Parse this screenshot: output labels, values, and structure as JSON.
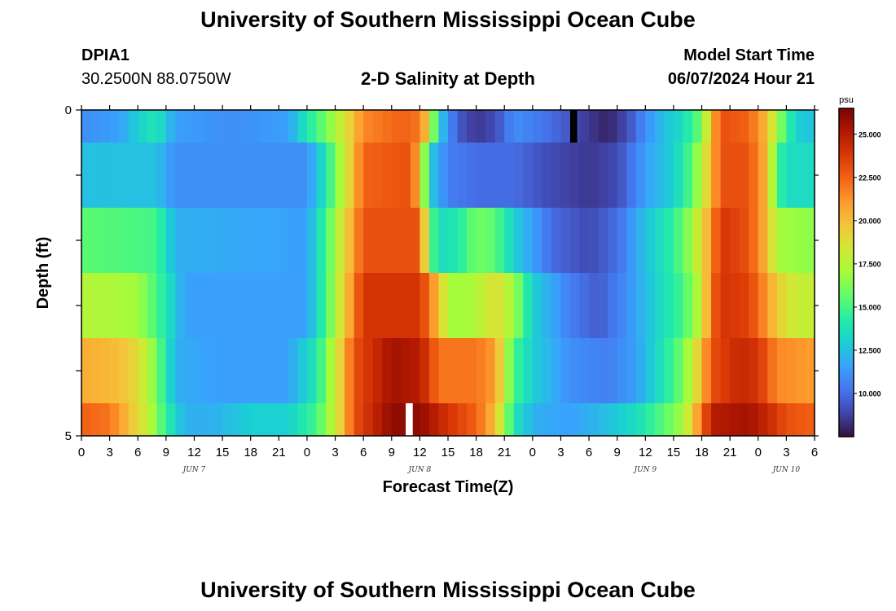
{
  "header": {
    "title": "University of Southern Mississippi Ocean Cube",
    "station_id": "DPIA1",
    "coords": "30.2500N  88.0750W",
    "plot_title": "2-D Salinity at Depth",
    "model_start_label": "Model Start Time",
    "model_start_value": "06/07/2024 Hour 21"
  },
  "footer": {
    "title": "University of Southern Mississippi Ocean Cube"
  },
  "chart_data": {
    "type": "heatmap",
    "xlabel": "Forecast Time(Z)",
    "ylabel": "Depth (ft)",
    "x_tick_labels": [
      "0",
      "3",
      "6",
      "9",
      "12",
      "15",
      "18",
      "21",
      "0",
      "3",
      "6",
      "9",
      "12",
      "15",
      "18",
      "21",
      "0",
      "3",
      "6",
      "9",
      "12",
      "15",
      "18",
      "21",
      "0",
      "3",
      "6"
    ],
    "date_labels": [
      {
        "text": "JUN 7",
        "hour": 12
      },
      {
        "text": "JUN 8",
        "hour": 36
      },
      {
        "text": "JUN 9",
        "hour": 60
      },
      {
        "text": "JUN 10",
        "hour": 75
      }
    ],
    "y_tick_labels": [
      "0",
      "5"
    ],
    "ylim": [
      0,
      5
    ],
    "x_range_hours": [
      0,
      78
    ],
    "colorbar": {
      "unit": "psu",
      "min": 7.5,
      "max": 26.5,
      "tick_values": [
        10.0,
        12.5,
        15.0,
        17.5,
        20.0,
        22.5,
        25.0
      ],
      "tick_labels": [
        "10.000",
        "12.500",
        "15.000",
        "17.500",
        "20.000",
        "22.500",
        "25.000"
      ],
      "colors": [
        "#30123b",
        "#4145ab",
        "#4675ed",
        "#39a2fc",
        "#1bcfd4",
        "#24eca6",
        "#61fc6c",
        "#a4fc3b",
        "#d1e834",
        "#f3c63a",
        "#fe9b2d",
        "#f36315",
        "#d93806",
        "#b11901",
        "#7a0402"
      ]
    },
    "depth_bands": [
      0,
      0.5,
      1.5,
      2.5,
      3.5,
      4.5,
      5
    ],
    "salinity_keyframes": [
      {
        "name": "0-0.5 ft",
        "points": [
          [
            0,
            11
          ],
          [
            4,
            11.5
          ],
          [
            6,
            13
          ],
          [
            8,
            14
          ],
          [
            10,
            11.5
          ],
          [
            16,
            11
          ],
          [
            22,
            11.5
          ],
          [
            24,
            14
          ],
          [
            26,
            16
          ],
          [
            28,
            18.5
          ],
          [
            30,
            21.5
          ],
          [
            34,
            22.5
          ],
          [
            36,
            22
          ],
          [
            37,
            19
          ],
          [
            38,
            13
          ],
          [
            40,
            9.5
          ],
          [
            42,
            8.5
          ],
          [
            44,
            9
          ],
          [
            46,
            11
          ],
          [
            50,
            10
          ],
          [
            54,
            8.5
          ],
          [
            56,
            8
          ],
          [
            58,
            9
          ],
          [
            60,
            11
          ],
          [
            62,
            12.5
          ],
          [
            64,
            13.5
          ],
          [
            66,
            16
          ],
          [
            67,
            20
          ],
          [
            68,
            23
          ],
          [
            71,
            22.5
          ],
          [
            73,
            20
          ],
          [
            74,
            17
          ],
          [
            76,
            13
          ],
          [
            78,
            12.5
          ]
        ]
      },
      {
        "name": "0.5-1.5 ft",
        "points": [
          [
            0,
            12.5
          ],
          [
            8,
            12.5
          ],
          [
            10,
            11
          ],
          [
            24,
            11
          ],
          [
            26,
            14
          ],
          [
            28,
            18
          ],
          [
            30,
            22.5
          ],
          [
            35,
            23
          ],
          [
            36,
            20
          ],
          [
            37,
            13
          ],
          [
            39,
            10.5
          ],
          [
            42,
            10
          ],
          [
            46,
            10
          ],
          [
            50,
            9
          ],
          [
            54,
            8.5
          ],
          [
            57,
            9
          ],
          [
            60,
            11.5
          ],
          [
            63,
            13
          ],
          [
            65,
            15.5
          ],
          [
            67,
            20
          ],
          [
            68,
            23
          ],
          [
            71,
            23
          ],
          [
            73,
            20
          ],
          [
            74,
            15
          ],
          [
            75,
            13.5
          ],
          [
            78,
            13.5
          ]
        ]
      },
      {
        "name": "1.5-2.5 ft",
        "points": [
          [
            0,
            15.5
          ],
          [
            8,
            15
          ],
          [
            10,
            12
          ],
          [
            24,
            11.5
          ],
          [
            26,
            15
          ],
          [
            28,
            19
          ],
          [
            30,
            23
          ],
          [
            36,
            23
          ],
          [
            37,
            16
          ],
          [
            38,
            13.5
          ],
          [
            40,
            14
          ],
          [
            42,
            16
          ],
          [
            44,
            15.5
          ],
          [
            46,
            13
          ],
          [
            50,
            10
          ],
          [
            54,
            9
          ],
          [
            57,
            10
          ],
          [
            60,
            12.5
          ],
          [
            63,
            14.5
          ],
          [
            65,
            17
          ],
          [
            67,
            21
          ],
          [
            68,
            24
          ],
          [
            71,
            23
          ],
          [
            73,
            20
          ],
          [
            74,
            17
          ],
          [
            78,
            16.5
          ]
        ]
      },
      {
        "name": "2.5-3.5 ft",
        "points": [
          [
            0,
            17.5
          ],
          [
            6,
            17
          ],
          [
            9,
            14
          ],
          [
            11,
            11.5
          ],
          [
            24,
            11.5
          ],
          [
            26,
            15
          ],
          [
            28,
            19.5
          ],
          [
            30,
            24
          ],
          [
            36,
            24
          ],
          [
            37,
            22
          ],
          [
            38,
            20
          ],
          [
            39,
            17
          ],
          [
            41,
            17
          ],
          [
            43,
            18
          ],
          [
            44,
            19
          ],
          [
            46,
            17
          ],
          [
            48,
            13
          ],
          [
            52,
            10.5
          ],
          [
            55,
            9.5
          ],
          [
            58,
            11
          ],
          [
            61,
            13
          ],
          [
            64,
            15
          ],
          [
            66,
            18
          ],
          [
            67,
            22
          ],
          [
            68,
            24
          ],
          [
            71,
            23.5
          ],
          [
            73,
            21
          ],
          [
            74,
            19.5
          ],
          [
            76,
            18
          ],
          [
            78,
            18
          ]
        ]
      },
      {
        "name": "3.5-4.5 ft",
        "points": [
          [
            0,
            20.5
          ],
          [
            4,
            20
          ],
          [
            6,
            19
          ],
          [
            8,
            16
          ],
          [
            10,
            12
          ],
          [
            14,
            11.5
          ],
          [
            22,
            11.5
          ],
          [
            25,
            14
          ],
          [
            27,
            18
          ],
          [
            29,
            23
          ],
          [
            33,
            25.5
          ],
          [
            36,
            25
          ],
          [
            38,
            22
          ],
          [
            42,
            22
          ],
          [
            44,
            21
          ],
          [
            46,
            15
          ],
          [
            48,
            13
          ],
          [
            52,
            11
          ],
          [
            56,
            10.5
          ],
          [
            59,
            11.5
          ],
          [
            62,
            14
          ],
          [
            64,
            16
          ],
          [
            66,
            20
          ],
          [
            67,
            23
          ],
          [
            70,
            24.5
          ],
          [
            72,
            24
          ],
          [
            74,
            21.5
          ],
          [
            78,
            21
          ]
        ]
      },
      {
        "name": "4.5-5 ft",
        "points": [
          [
            0,
            22.5
          ],
          [
            3,
            22
          ],
          [
            5,
            20
          ],
          [
            7,
            18
          ],
          [
            9,
            14.5
          ],
          [
            11,
            12
          ],
          [
            14,
            12
          ],
          [
            18,
            13
          ],
          [
            22,
            13
          ],
          [
            25,
            15
          ],
          [
            27,
            18
          ],
          [
            29,
            23
          ],
          [
            33,
            26
          ],
          [
            36,
            26
          ],
          [
            39,
            24
          ],
          [
            42,
            22.5
          ],
          [
            44,
            20
          ],
          [
            46,
            14
          ],
          [
            48,
            12
          ],
          [
            52,
            11.5
          ],
          [
            56,
            12.5
          ],
          [
            59,
            13.5
          ],
          [
            62,
            15.5
          ],
          [
            64,
            17
          ],
          [
            66,
            22
          ],
          [
            67,
            25
          ],
          [
            71,
            25.5
          ],
          [
            73,
            24.5
          ],
          [
            75,
            23
          ],
          [
            78,
            22.5
          ]
        ]
      }
    ],
    "marker_columns": [
      {
        "hour": 52,
        "depth_from": 0,
        "depth_to": 0.5,
        "color": "#000000"
      },
      {
        "hour": 34.5,
        "depth_from": 4.5,
        "depth_to": 5,
        "color": "#ffffff"
      }
    ]
  }
}
